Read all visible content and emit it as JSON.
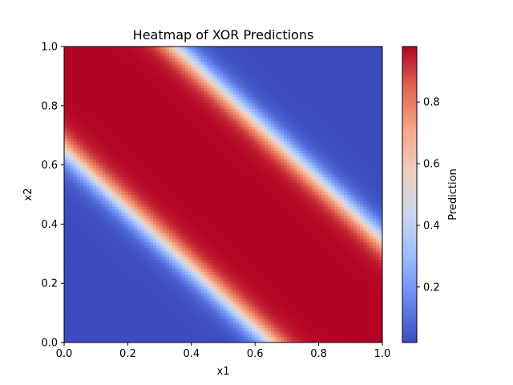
{
  "chart_data": {
    "type": "heatmap",
    "title": "Heatmap of XOR Predictions",
    "xlabel": "x1",
    "ylabel": "x2",
    "xlim": [
      0.0,
      1.0
    ],
    "ylim": [
      0.0,
      1.0
    ],
    "x_ticks": [
      0.0,
      0.2,
      0.4,
      0.6,
      0.8,
      1.0
    ],
    "y_ticks": [
      0.0,
      0.2,
      0.4,
      0.6,
      0.8,
      1.0
    ],
    "x_tick_labels": [
      "0.0",
      "0.2",
      "0.4",
      "0.6",
      "0.8",
      "1.0"
    ],
    "y_tick_labels": [
      "0.0",
      "0.2",
      "0.4",
      "0.6",
      "0.8",
      "1.0"
    ],
    "grid_resolution": 100,
    "colormap": "coolwarm",
    "colormap_stops": [
      "#3b4cc0",
      "#6788ee",
      "#9abbff",
      "#c9d7f0",
      "#edd1c2",
      "#f7a889",
      "#e26952",
      "#b40426"
    ],
    "value_description": "prediction is high (~0.98) in a diagonal band where x1 + x2 is near 1, falling to ~0.02 near (0,0) and (1,1)",
    "band_center_sum": 1.0,
    "band_half_width_high": 0.35,
    "band_transition_width": 0.12,
    "value_min": 0.02,
    "value_max": 0.98,
    "colorbar": {
      "label": "Prediction",
      "range": [
        0.02,
        0.98
      ],
      "ticks": [
        0.2,
        0.4,
        0.6,
        0.8
      ],
      "tick_labels": [
        "0.2",
        "0.4",
        "0.6",
        "0.8"
      ]
    }
  }
}
